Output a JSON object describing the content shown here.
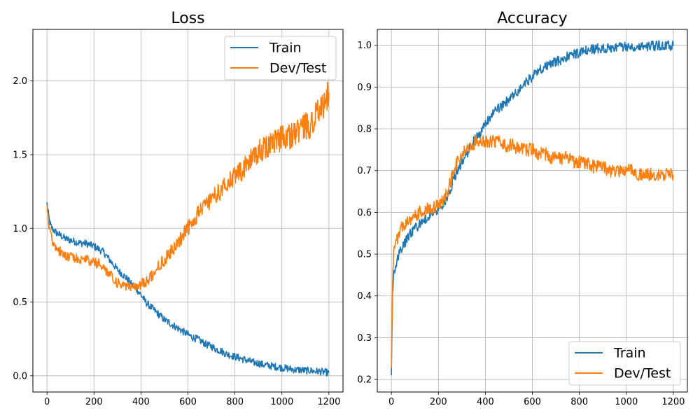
{
  "chart_data": [
    {
      "type": "line",
      "title": "Loss",
      "xlabel": "",
      "ylabel": "",
      "xlim": [
        -60,
        1260
      ],
      "ylim": [
        -0.11,
        2.35
      ],
      "xticks": [
        0,
        200,
        400,
        600,
        800,
        1000,
        1200
      ],
      "xtick_labels": [
        "0",
        "200",
        "400",
        "600",
        "800",
        "1000",
        "1200"
      ],
      "yticks": [
        0.0,
        0.5,
        1.0,
        1.5,
        2.0
      ],
      "ytick_labels": [
        "0.0",
        "0.5",
        "1.0",
        "1.5",
        "2.0"
      ],
      "grid": true,
      "legend_position": "top-right",
      "series": [
        {
          "name": "Train",
          "color": "#1f77b4",
          "x": [
            0,
            10,
            20,
            40,
            60,
            80,
            100,
            120,
            140,
            160,
            180,
            200,
            220,
            240,
            260,
            280,
            300,
            320,
            340,
            360,
            380,
            400,
            420,
            440,
            460,
            480,
            500,
            520,
            540,
            560,
            580,
            600,
            620,
            640,
            660,
            680,
            700,
            720,
            740,
            760,
            780,
            800,
            820,
            840,
            860,
            880,
            900,
            920,
            940,
            960,
            980,
            1000,
            1020,
            1040,
            1060,
            1080,
            1100,
            1120,
            1140,
            1160,
            1180,
            1200
          ],
          "y": [
            1.17,
            1.05,
            1.0,
            0.97,
            0.95,
            0.93,
            0.92,
            0.91,
            0.9,
            0.9,
            0.89,
            0.88,
            0.86,
            0.84,
            0.8,
            0.76,
            0.72,
            0.69,
            0.66,
            0.62,
            0.59,
            0.55,
            0.5,
            0.47,
            0.44,
            0.41,
            0.38,
            0.36,
            0.34,
            0.32,
            0.3,
            0.28,
            0.26,
            0.25,
            0.23,
            0.21,
            0.2,
            0.18,
            0.17,
            0.15,
            0.14,
            0.13,
            0.12,
            0.11,
            0.1,
            0.09,
            0.085,
            0.075,
            0.07,
            0.065,
            0.06,
            0.055,
            0.05,
            0.045,
            0.04,
            0.04,
            0.035,
            0.035,
            0.03,
            0.03,
            0.025,
            0.02
          ]
        },
        {
          "name": "Dev/Test",
          "color": "#ff7f0e",
          "x": [
            0,
            10,
            20,
            40,
            60,
            80,
            100,
            120,
            140,
            160,
            180,
            200,
            220,
            240,
            260,
            280,
            300,
            320,
            340,
            360,
            380,
            400,
            420,
            440,
            460,
            480,
            500,
            520,
            540,
            560,
            580,
            600,
            620,
            640,
            660,
            680,
            700,
            720,
            740,
            760,
            780,
            800,
            820,
            840,
            860,
            880,
            900,
            920,
            940,
            960,
            980,
            1000,
            1020,
            1040,
            1060,
            1080,
            1100,
            1120,
            1140,
            1160,
            1180,
            1200
          ],
          "y": [
            1.15,
            1.0,
            0.93,
            0.87,
            0.84,
            0.82,
            0.81,
            0.8,
            0.79,
            0.79,
            0.78,
            0.77,
            0.76,
            0.74,
            0.7,
            0.66,
            0.63,
            0.61,
            0.6,
            0.6,
            0.61,
            0.62,
            0.64,
            0.67,
            0.71,
            0.75,
            0.79,
            0.83,
            0.87,
            0.91,
            0.96,
            1.0,
            1.05,
            1.09,
            1.13,
            1.17,
            1.2,
            1.23,
            1.26,
            1.29,
            1.32,
            1.35,
            1.38,
            1.41,
            1.45,
            1.49,
            1.52,
            1.54,
            1.56,
            1.58,
            1.6,
            1.61,
            1.62,
            1.63,
            1.65,
            1.67,
            1.69,
            1.71,
            1.75,
            1.8,
            1.86,
            1.92
          ]
        }
      ]
    },
    {
      "type": "line",
      "title": "Accuracy",
      "xlabel": "",
      "ylabel": "",
      "xlim": [
        -60,
        1260
      ],
      "ylim": [
        0.17,
        1.038
      ],
      "xticks": [
        0,
        200,
        400,
        600,
        800,
        1000,
        1200
      ],
      "xtick_labels": [
        "0",
        "200",
        "400",
        "600",
        "800",
        "1000",
        "1200"
      ],
      "yticks": [
        0.2,
        0.3,
        0.4,
        0.5,
        0.6,
        0.7,
        0.8,
        0.9,
        1.0
      ],
      "ytick_labels": [
        "0.2",
        "0.3",
        "0.4",
        "0.5",
        "0.6",
        "0.7",
        "0.8",
        "0.9",
        "1.0"
      ],
      "grid": true,
      "legend_position": "bottom-right",
      "series": [
        {
          "name": "Train",
          "color": "#1f77b4",
          "x": [
            0,
            5,
            10,
            20,
            40,
            60,
            80,
            100,
            120,
            140,
            160,
            180,
            200,
            220,
            240,
            260,
            280,
            300,
            320,
            340,
            360,
            380,
            400,
            420,
            440,
            460,
            480,
            500,
            520,
            540,
            560,
            580,
            600,
            620,
            640,
            660,
            680,
            700,
            720,
            740,
            760,
            780,
            800,
            820,
            840,
            860,
            880,
            900,
            920,
            940,
            960,
            980,
            1000,
            1020,
            1040,
            1060,
            1080,
            1100,
            1120,
            1140,
            1160,
            1180,
            1200
          ],
          "y": [
            0.21,
            0.4,
            0.45,
            0.48,
            0.51,
            0.53,
            0.55,
            0.56,
            0.57,
            0.58,
            0.59,
            0.6,
            0.61,
            0.62,
            0.64,
            0.67,
            0.7,
            0.72,
            0.74,
            0.76,
            0.78,
            0.79,
            0.81,
            0.83,
            0.84,
            0.85,
            0.86,
            0.87,
            0.88,
            0.89,
            0.905,
            0.915,
            0.925,
            0.935,
            0.945,
            0.95,
            0.955,
            0.96,
            0.965,
            0.97,
            0.975,
            0.98,
            0.982,
            0.985,
            0.988,
            0.99,
            0.992,
            0.993,
            0.994,
            0.995,
            0.996,
            0.997,
            0.997,
            0.997,
            0.998,
            0.998,
            0.998,
            0.999,
            0.999,
            0.999,
            0.999,
            0.999,
            0.999
          ]
        },
        {
          "name": "Dev/Test",
          "color": "#ff7f0e",
          "x": [
            0,
            5,
            10,
            20,
            40,
            60,
            80,
            100,
            120,
            140,
            160,
            180,
            200,
            220,
            240,
            260,
            280,
            300,
            320,
            340,
            360,
            380,
            400,
            420,
            440,
            460,
            480,
            500,
            520,
            540,
            560,
            580,
            600,
            620,
            640,
            660,
            680,
            700,
            720,
            740,
            760,
            780,
            800,
            820,
            840,
            860,
            880,
            900,
            920,
            940,
            960,
            980,
            1000,
            1020,
            1040,
            1060,
            1080,
            1100,
            1120,
            1140,
            1160,
            1180,
            1200
          ],
          "y": [
            0.23,
            0.43,
            0.5,
            0.53,
            0.56,
            0.57,
            0.58,
            0.59,
            0.6,
            0.6,
            0.61,
            0.61,
            0.62,
            0.63,
            0.65,
            0.69,
            0.72,
            0.74,
            0.75,
            0.76,
            0.77,
            0.77,
            0.77,
            0.77,
            0.77,
            0.77,
            0.76,
            0.76,
            0.76,
            0.75,
            0.75,
            0.75,
            0.75,
            0.74,
            0.74,
            0.74,
            0.73,
            0.73,
            0.73,
            0.73,
            0.73,
            0.72,
            0.72,
            0.72,
            0.72,
            0.71,
            0.71,
            0.71,
            0.7,
            0.7,
            0.7,
            0.7,
            0.7,
            0.7,
            0.69,
            0.69,
            0.69,
            0.69,
            0.69,
            0.69,
            0.69,
            0.69,
            0.69
          ]
        }
      ]
    }
  ]
}
